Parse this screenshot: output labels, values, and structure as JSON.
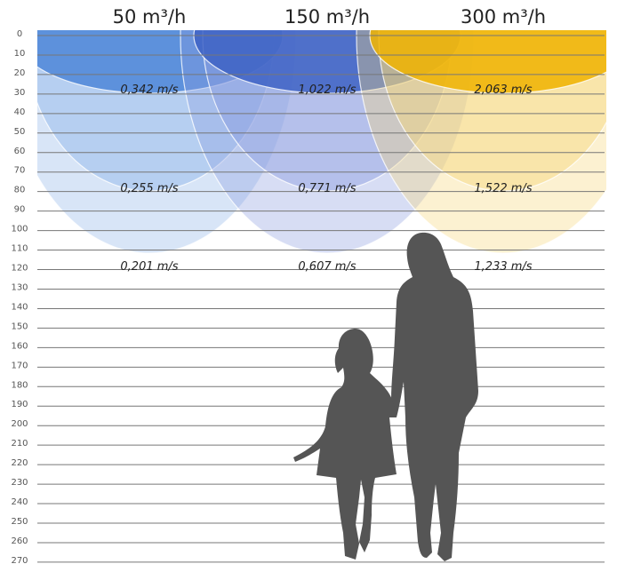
{
  "columns": [
    {
      "header": "50 m³/h",
      "velocities": [
        "0,342 m/s",
        "0,255 m/s",
        "0,201 m/s"
      ]
    },
    {
      "header": "150 m³/h",
      "velocities": [
        "1,022 m/s",
        "0,771 m/s",
        "0,607 m/s"
      ]
    },
    {
      "header": "300 m³/h",
      "velocities": [
        "2,063 m/s",
        "1,522 m/s",
        "1,233 m/s"
      ]
    }
  ],
  "scale": {
    "ticks": [
      0,
      10,
      20,
      30,
      40,
      50,
      60,
      70,
      80,
      90,
      100,
      110,
      120,
      130,
      140,
      150,
      160,
      170,
      180,
      190,
      200,
      210,
      220,
      230,
      240,
      250,
      260,
      270
    ]
  }
}
